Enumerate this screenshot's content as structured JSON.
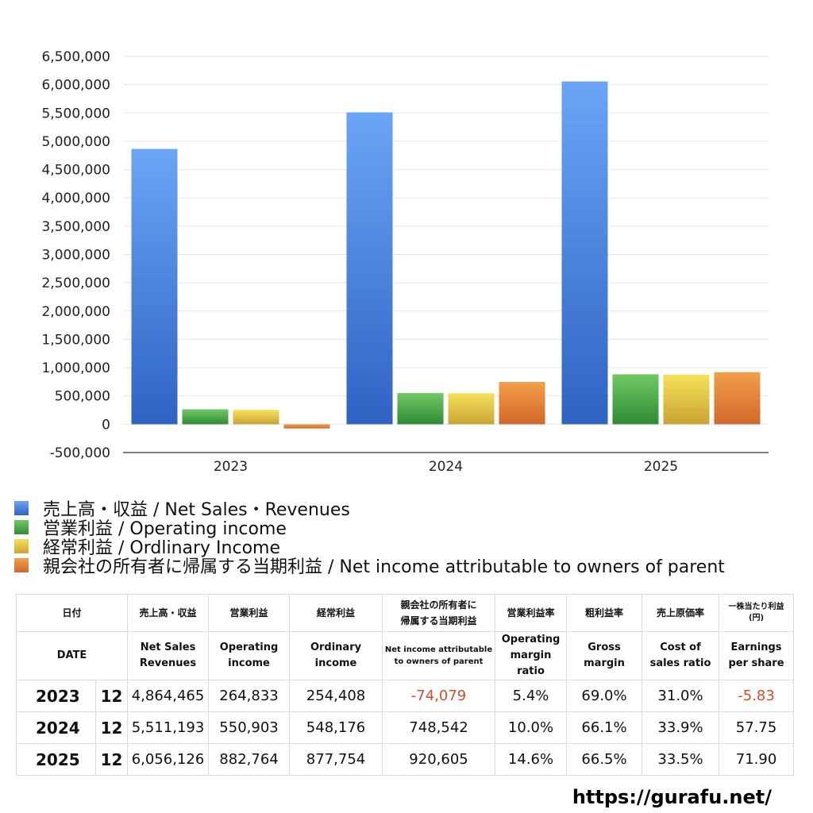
{
  "chart_data": {
    "type": "bar",
    "categories": [
      "2023",
      "2024",
      "2025"
    ],
    "series": [
      {
        "name": "売上高・収益 / Net Sales・Revenues",
        "values": [
          4864465,
          5511193,
          6056126
        ],
        "color": "#4a86e8"
      },
      {
        "name": "営業利益 / Operating income",
        "values": [
          264833,
          550903,
          882764
        ],
        "color": "#4ea848"
      },
      {
        "name": "経常利益 / Ordlinary Income",
        "values": [
          254408,
          548176,
          877754
        ],
        "color": "#e3c53c"
      },
      {
        "name": "親会社の所有者に帰属する当期利益 / Net income attributable to owners of parent",
        "values": [
          -74079,
          748542,
          920605
        ],
        "color": "#e0782f"
      }
    ],
    "ylim": [
      -500000,
      6500000
    ],
    "yticks": [
      "6,500,000",
      "6,000,000",
      "5,500,000",
      "5,000,000",
      "4,500,000",
      "4,000,000",
      "3,500,000",
      "3,000,000",
      "2,500,000",
      "2,000,000",
      "1,500,000",
      "1,000,000",
      "500,000",
      "0",
      "-500,000"
    ],
    "grid": true,
    "legend": "bottom-left"
  },
  "table": {
    "headers_jp": [
      "日付",
      "売上高・収益",
      "営業利益",
      "経常利益",
      "親会社の所有者に",
      "帰属する当期利益",
      "営業利益率",
      "粗利益率",
      "売上原価率",
      "一株当たり利益",
      "(円)"
    ],
    "headers_en": {
      "date": "DATE",
      "sales": [
        "Net Sales",
        "Revenues"
      ],
      "op": [
        "Operating",
        "income"
      ],
      "ord": [
        "Ordinary",
        "income"
      ],
      "net": [
        "Net income attributable",
        "to owners of parent"
      ],
      "opm": [
        "Operating",
        "margin",
        "ratio"
      ],
      "gross": [
        "Gross",
        "margin"
      ],
      "cost": [
        "Cost of",
        "sales ratio"
      ],
      "eps": [
        "Earnings",
        "per share"
      ]
    },
    "rows": [
      {
        "year": "2023",
        "month": "12",
        "sales": "4,864,465",
        "op": "264,833",
        "ord": "254,408",
        "net": "-74,079",
        "opm": "5.4%",
        "gross": "69.0%",
        "cost": "31.0%",
        "eps": "-5.83"
      },
      {
        "year": "2024",
        "month": "12",
        "sales": "5,511,193",
        "op": "550,903",
        "ord": "548,176",
        "net": "748,542",
        "opm": "10.0%",
        "gross": "66.1%",
        "cost": "33.9%",
        "eps": "57.75"
      },
      {
        "year": "2025",
        "month": "12",
        "sales": "6,056,126",
        "op": "882,764",
        "ord": "877,754",
        "net": "920,605",
        "opm": "14.6%",
        "gross": "66.5%",
        "cost": "33.5%",
        "eps": "71.90"
      }
    ]
  },
  "site": "https://gurafu.net/"
}
